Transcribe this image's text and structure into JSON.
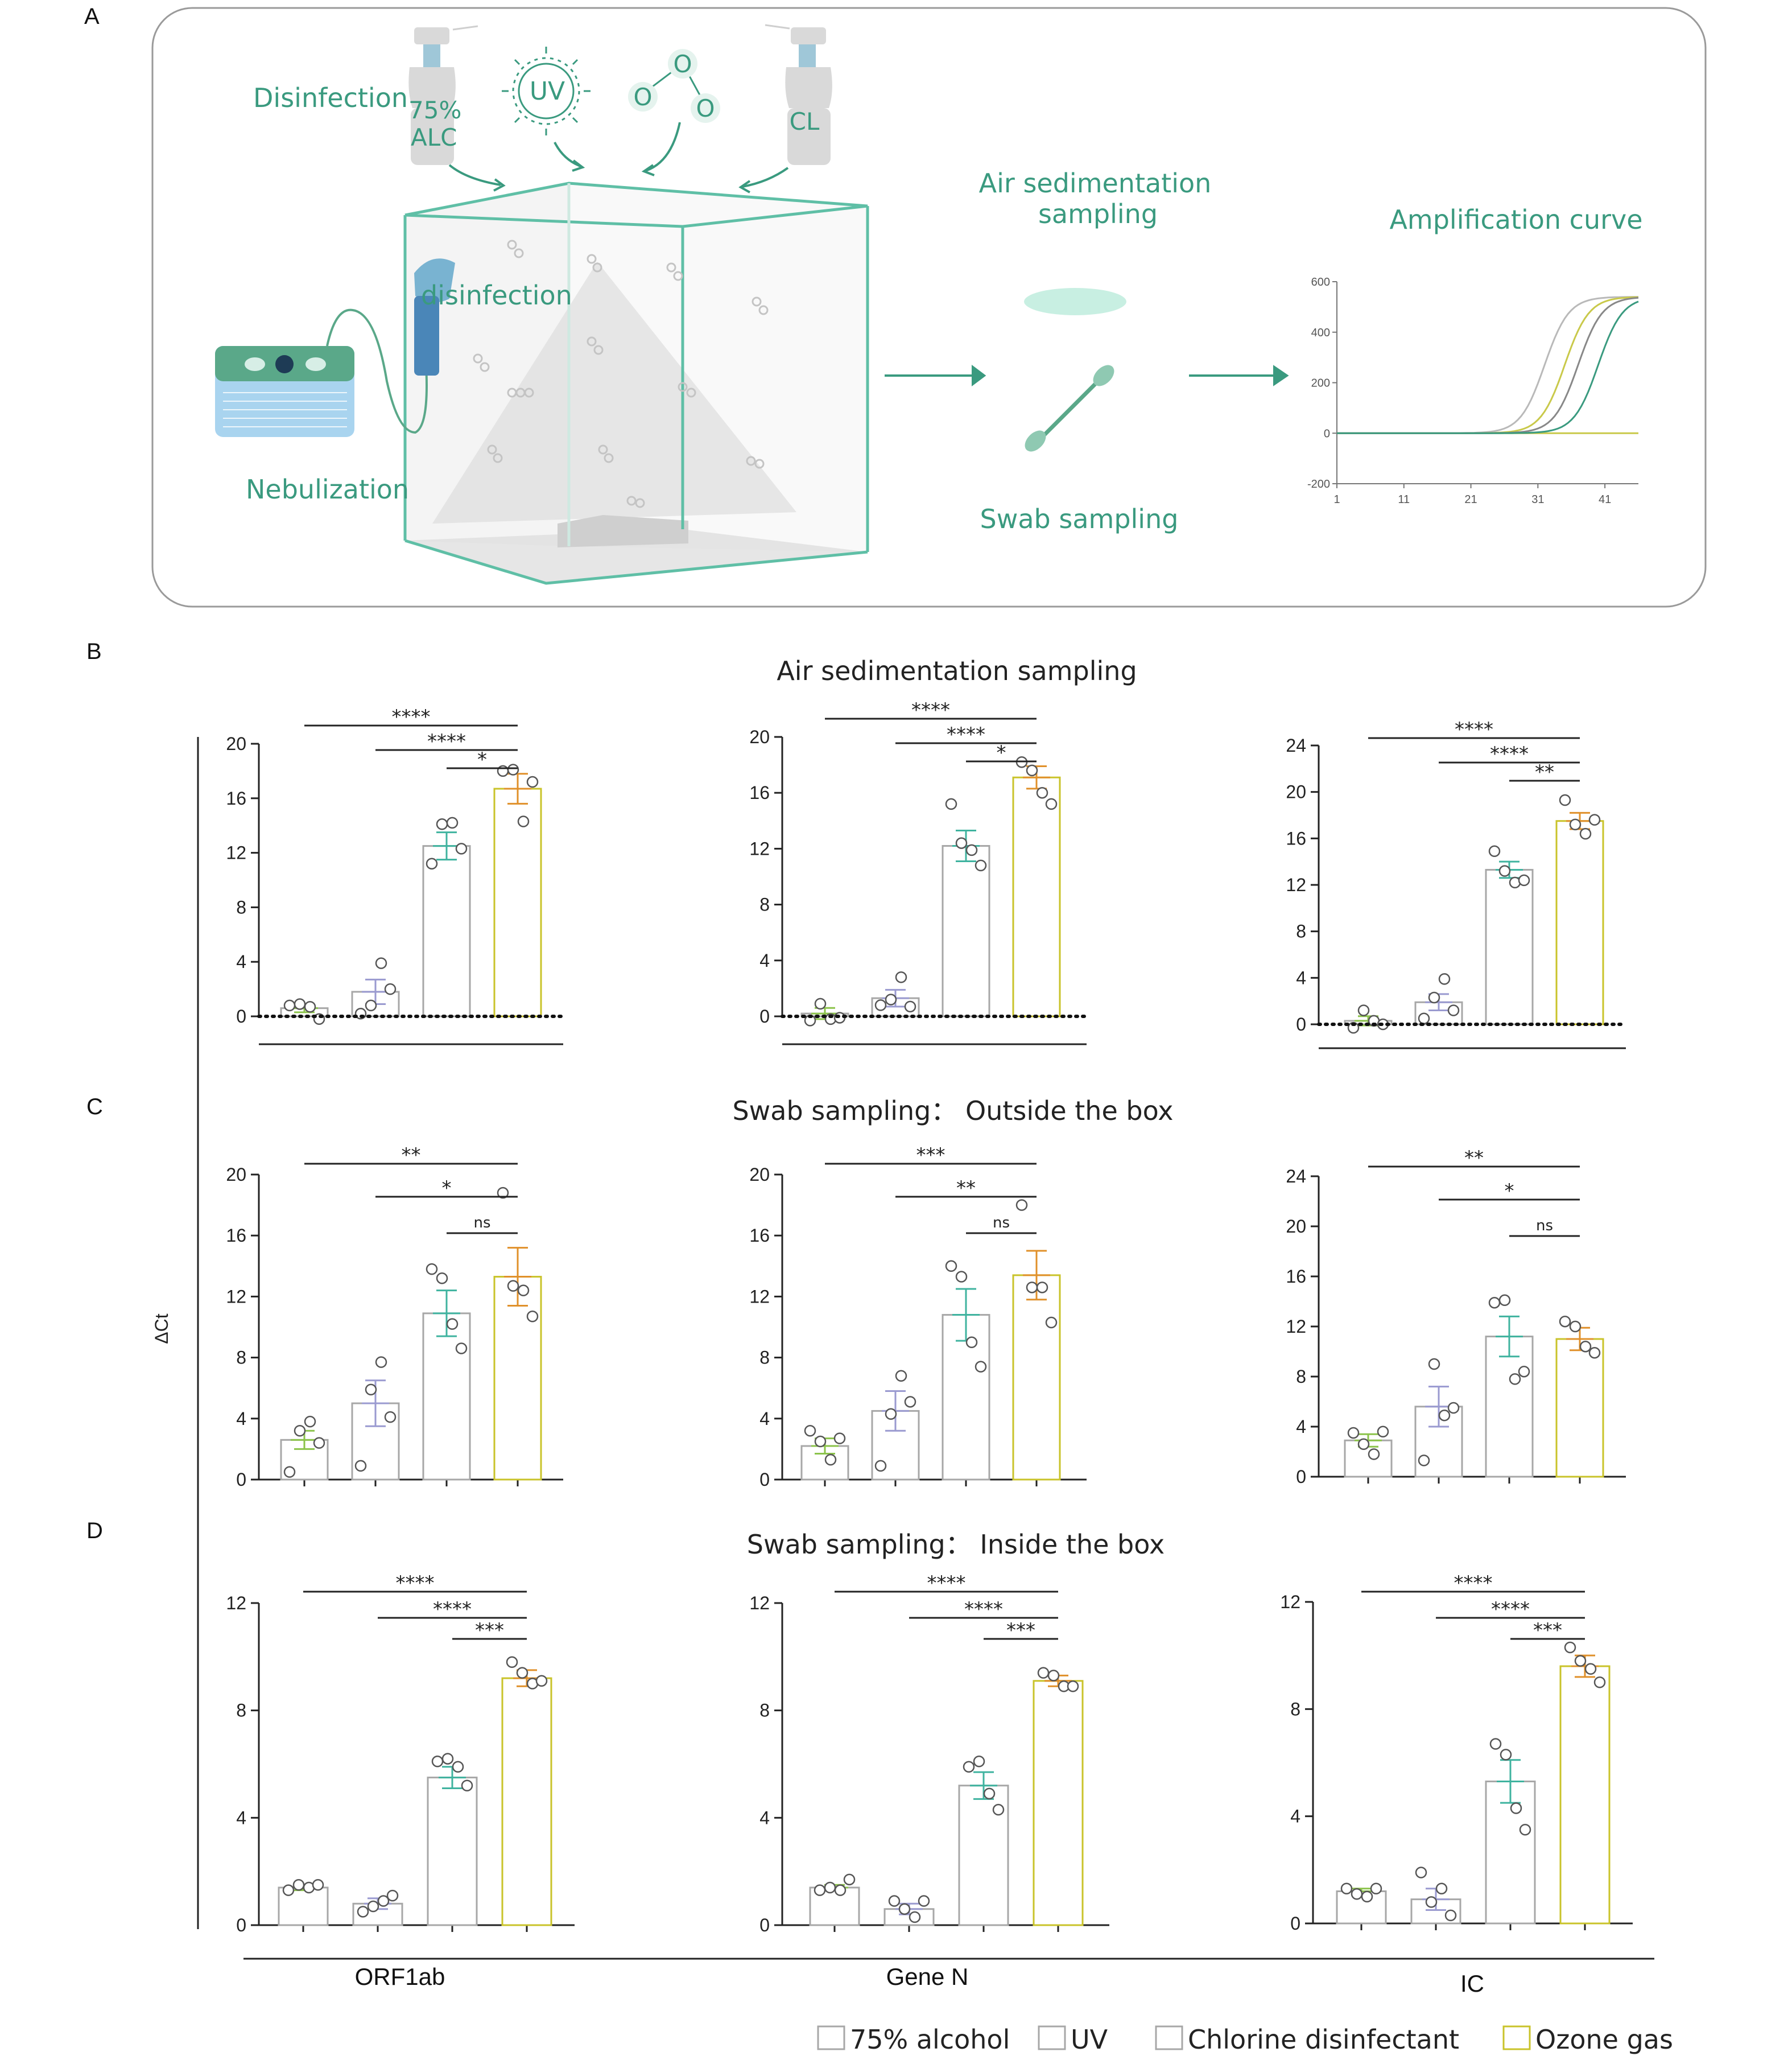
{
  "panel_a": {
    "letter": "A",
    "labels": {
      "disinfection": "Disinfection",
      "alc": "75%\nALC",
      "uv": "UV",
      "cl": "CL",
      "ozone_o": "O",
      "disinfection_inner": "disinfection",
      "nebulization": "Nebulization",
      "air_sampling": "Air sedimentation\nsampling",
      "swab_sampling": "Swab sampling",
      "amplification_curve": "Amplification curve"
    },
    "amp_chart": {
      "y_ticks": [
        "600",
        "400",
        "200",
        "0",
        "-200"
      ],
      "x_ticks": [
        "1",
        "11",
        "21",
        "31",
        "41"
      ],
      "curve_colors": [
        "#b9b9b9",
        "#c9c94a",
        "#888888",
        "#3a9a7f"
      ],
      "curve_midpoints": [
        32,
        35,
        37,
        40
      ]
    }
  },
  "sections": [
    {
      "letter": "B",
      "title": "Air sedimentation sampling"
    },
    {
      "letter": "C",
      "title": "Swab sampling：  Outside the box"
    },
    {
      "letter": "D",
      "title": "Swab sampling：  Inside the box"
    }
  ],
  "y_axis_label": "ΔCt",
  "genes": [
    "ORF1ab",
    "Gene N",
    "IC"
  ],
  "legend": [
    {
      "label": "75% alcohol",
      "color": "#a7a7a7"
    },
    {
      "label": "UV",
      "color": "#a7a7a7"
    },
    {
      "label": "Chlorine disinfectant",
      "color": "#a7a7a7"
    },
    {
      "label": "Ozone gas",
      "color": "#c9c32a"
    }
  ],
  "colors": {
    "bar_gray": "#a7a7a7",
    "bar_ozone": "#c9c32a",
    "err_alcohol": "#8bc34a",
    "err_uv": "#9a9ad0",
    "err_chlorine": "#3fb39f",
    "err_ozone": "#e0902a",
    "teal": "#3a9a7f"
  },
  "chart_data": [
    {
      "type": "bar",
      "section": "B",
      "gene": "ORF1ab",
      "categories": [
        "75% alcohol",
        "UV",
        "Chlorine disinfectant",
        "Ozone gas"
      ],
      "values": [
        0.6,
        1.8,
        12.5,
        16.7
      ],
      "sem": [
        0.3,
        0.9,
        1.0,
        1.1
      ],
      "points": [
        [
          0.8,
          0.9,
          0.7,
          -0.2
        ],
        [
          0.2,
          0.8,
          3.9,
          2.0
        ],
        [
          11.2,
          14.1,
          14.2,
          12.3
        ],
        [
          18.0,
          18.1,
          14.3,
          17.2
        ]
      ],
      "yticks": [
        0,
        4,
        8,
        12,
        16,
        20
      ],
      "ylim": [
        0,
        20
      ],
      "zero_dotted": true,
      "sig": [
        [
          "****",
          0,
          3
        ],
        [
          "****",
          1,
          3
        ],
        [
          "*",
          2,
          3
        ]
      ]
    },
    {
      "type": "bar",
      "section": "B",
      "gene": "Gene N",
      "categories": [
        "75% alcohol",
        "UV",
        "Chlorine disinfectant",
        "Ozone gas"
      ],
      "values": [
        0.2,
        1.3,
        12.2,
        17.1
      ],
      "sem": [
        0.4,
        0.6,
        1.1,
        0.8
      ],
      "points": [
        [
          -0.3,
          0.9,
          -0.2,
          -0.1
        ],
        [
          0.8,
          1.2,
          2.8,
          0.7
        ],
        [
          15.2,
          12.4,
          11.9,
          10.8
        ],
        [
          18.2,
          17.6,
          16.0,
          15.2
        ]
      ],
      "yticks": [
        0,
        4,
        8,
        12,
        16,
        20
      ],
      "ylim": [
        0,
        20
      ],
      "zero_dotted": true,
      "sig": [
        [
          "****",
          0,
          3
        ],
        [
          "****",
          1,
          3
        ],
        [
          "*",
          2,
          3
        ]
      ]
    },
    {
      "type": "bar",
      "section": "B",
      "gene": "IC",
      "categories": [
        "75% alcohol",
        "UV",
        "Chlorine disinfectant",
        "Ozone gas"
      ],
      "values": [
        0.3,
        1.9,
        13.3,
        17.5
      ],
      "sem": [
        0.4,
        0.7,
        0.7,
        0.7
      ],
      "points": [
        [
          -0.3,
          1.2,
          0.3,
          0.0
        ],
        [
          0.5,
          2.3,
          3.9,
          1.2
        ],
        [
          14.9,
          13.2,
          12.2,
          12.4
        ],
        [
          19.3,
          17.2,
          16.4,
          17.6
        ]
      ],
      "yticks": [
        0,
        4,
        8,
        12,
        16,
        20,
        24
      ],
      "ylim": [
        0,
        24
      ],
      "zero_dotted": true,
      "sig": [
        [
          "****",
          0,
          3
        ],
        [
          "****",
          1,
          3
        ],
        [
          "**",
          2,
          3
        ]
      ]
    },
    {
      "type": "bar",
      "section": "C",
      "gene": "ORF1ab",
      "categories": [
        "75% alcohol",
        "UV",
        "Chlorine disinfectant",
        "Ozone gas"
      ],
      "values": [
        2.6,
        5.0,
        10.9,
        13.3
      ],
      "sem": [
        0.6,
        1.5,
        1.5,
        1.9
      ],
      "points": [
        [
          0.5,
          3.2,
          3.8,
          2.4
        ],
        [
          0.9,
          5.9,
          7.7,
          4.1
        ],
        [
          13.8,
          13.2,
          10.2,
          8.6
        ],
        [
          18.8,
          12.7,
          12.4,
          10.7
        ]
      ],
      "yticks": [
        0,
        4,
        8,
        12,
        16,
        20
      ],
      "ylim": [
        0,
        20
      ],
      "zero_dotted": false,
      "sig": [
        [
          "**",
          0,
          3
        ],
        [
          "*",
          1,
          3
        ],
        [
          "ns",
          2,
          3
        ]
      ]
    },
    {
      "type": "bar",
      "section": "C",
      "gene": "Gene N",
      "categories": [
        "75% alcohol",
        "UV",
        "Chlorine disinfectant",
        "Ozone gas"
      ],
      "values": [
        2.2,
        4.5,
        10.8,
        13.4
      ],
      "sem": [
        0.5,
        1.3,
        1.7,
        1.6
      ],
      "points": [
        [
          3.2,
          2.5,
          1.3,
          2.7
        ],
        [
          0.9,
          4.3,
          6.8,
          5.1
        ],
        [
          14.0,
          13.3,
          9.0,
          7.4
        ],
        [
          18.0,
          12.6,
          12.6,
          10.3
        ]
      ],
      "yticks": [
        0,
        4,
        8,
        12,
        16,
        20
      ],
      "ylim": [
        0,
        20
      ],
      "zero_dotted": false,
      "sig": [
        [
          "***",
          0,
          3
        ],
        [
          "**",
          1,
          3
        ],
        [
          "ns",
          2,
          3
        ]
      ]
    },
    {
      "type": "bar",
      "section": "C",
      "gene": "IC",
      "categories": [
        "75% alcohol",
        "UV",
        "Chlorine disinfectant",
        "Ozone gas"
      ],
      "values": [
        2.9,
        5.6,
        11.2,
        11.0
      ],
      "sem": [
        0.5,
        1.6,
        1.6,
        0.9
      ],
      "points": [
        [
          3.5,
          2.6,
          1.8,
          3.6
        ],
        [
          1.3,
          9.0,
          4.9,
          5.5
        ],
        [
          13.9,
          14.1,
          7.8,
          8.4
        ],
        [
          12.4,
          12.0,
          10.4,
          9.9
        ]
      ],
      "yticks": [
        0,
        4,
        8,
        12,
        16,
        20,
        24
      ],
      "ylim": [
        0,
        24
      ],
      "zero_dotted": false,
      "sig": [
        [
          "**",
          0,
          3
        ],
        [
          "*",
          1,
          3
        ],
        [
          "ns",
          2,
          3
        ]
      ]
    },
    {
      "type": "bar",
      "section": "D",
      "gene": "ORF1ab",
      "categories": [
        "75% alcohol",
        "UV",
        "Chlorine disinfectant",
        "Ozone gas"
      ],
      "values": [
        1.4,
        0.8,
        5.5,
        9.2
      ],
      "sem": [
        0.1,
        0.2,
        0.4,
        0.3
      ],
      "points": [
        [
          1.3,
          1.5,
          1.4,
          1.5
        ],
        [
          0.5,
          0.7,
          0.9,
          1.1
        ],
        [
          6.1,
          6.2,
          5.9,
          5.2
        ],
        [
          9.8,
          9.4,
          9.0,
          9.1
        ]
      ],
      "yticks": [
        0,
        4,
        8,
        12
      ],
      "ylim": [
        0,
        12
      ],
      "zero_dotted": false,
      "sig": [
        [
          "****",
          0,
          3
        ],
        [
          "****",
          1,
          3
        ],
        [
          "***",
          2,
          3
        ]
      ]
    },
    {
      "type": "bar",
      "section": "D",
      "gene": "Gene N",
      "categories": [
        "75% alcohol",
        "UV",
        "Chlorine disinfectant",
        "Ozone gas"
      ],
      "values": [
        1.4,
        0.6,
        5.2,
        9.1
      ],
      "sem": [
        0.1,
        0.2,
        0.5,
        0.2
      ],
      "points": [
        [
          1.3,
          1.4,
          1.3,
          1.7
        ],
        [
          0.9,
          0.6,
          0.3,
          0.9
        ],
        [
          5.9,
          6.1,
          4.9,
          4.3
        ],
        [
          9.4,
          9.3,
          8.9,
          8.9
        ]
      ],
      "yticks": [
        0,
        4,
        8,
        12
      ],
      "ylim": [
        0,
        12
      ],
      "zero_dotted": false,
      "sig": [
        [
          "****",
          0,
          3
        ],
        [
          "****",
          1,
          3
        ],
        [
          "***",
          2,
          3
        ]
      ]
    },
    {
      "type": "bar",
      "section": "D",
      "gene": "IC",
      "categories": [
        "75% alcohol",
        "UV",
        "Chlorine disinfectant",
        "Ozone gas"
      ],
      "values": [
        1.2,
        0.9,
        5.3,
        9.6
      ],
      "sem": [
        0.1,
        0.4,
        0.8,
        0.4
      ],
      "points": [
        [
          1.3,
          1.1,
          1.0,
          1.3
        ],
        [
          1.9,
          0.8,
          1.3,
          0.3
        ],
        [
          6.7,
          6.3,
          4.3,
          3.5
        ],
        [
          10.3,
          9.8,
          9.5,
          9.0
        ]
      ],
      "yticks": [
        0,
        4,
        8,
        12
      ],
      "ylim": [
        0,
        12
      ],
      "zero_dotted": false,
      "sig": [
        [
          "****",
          0,
          3
        ],
        [
          "****",
          1,
          3
        ],
        [
          "***",
          2,
          3
        ]
      ]
    }
  ]
}
